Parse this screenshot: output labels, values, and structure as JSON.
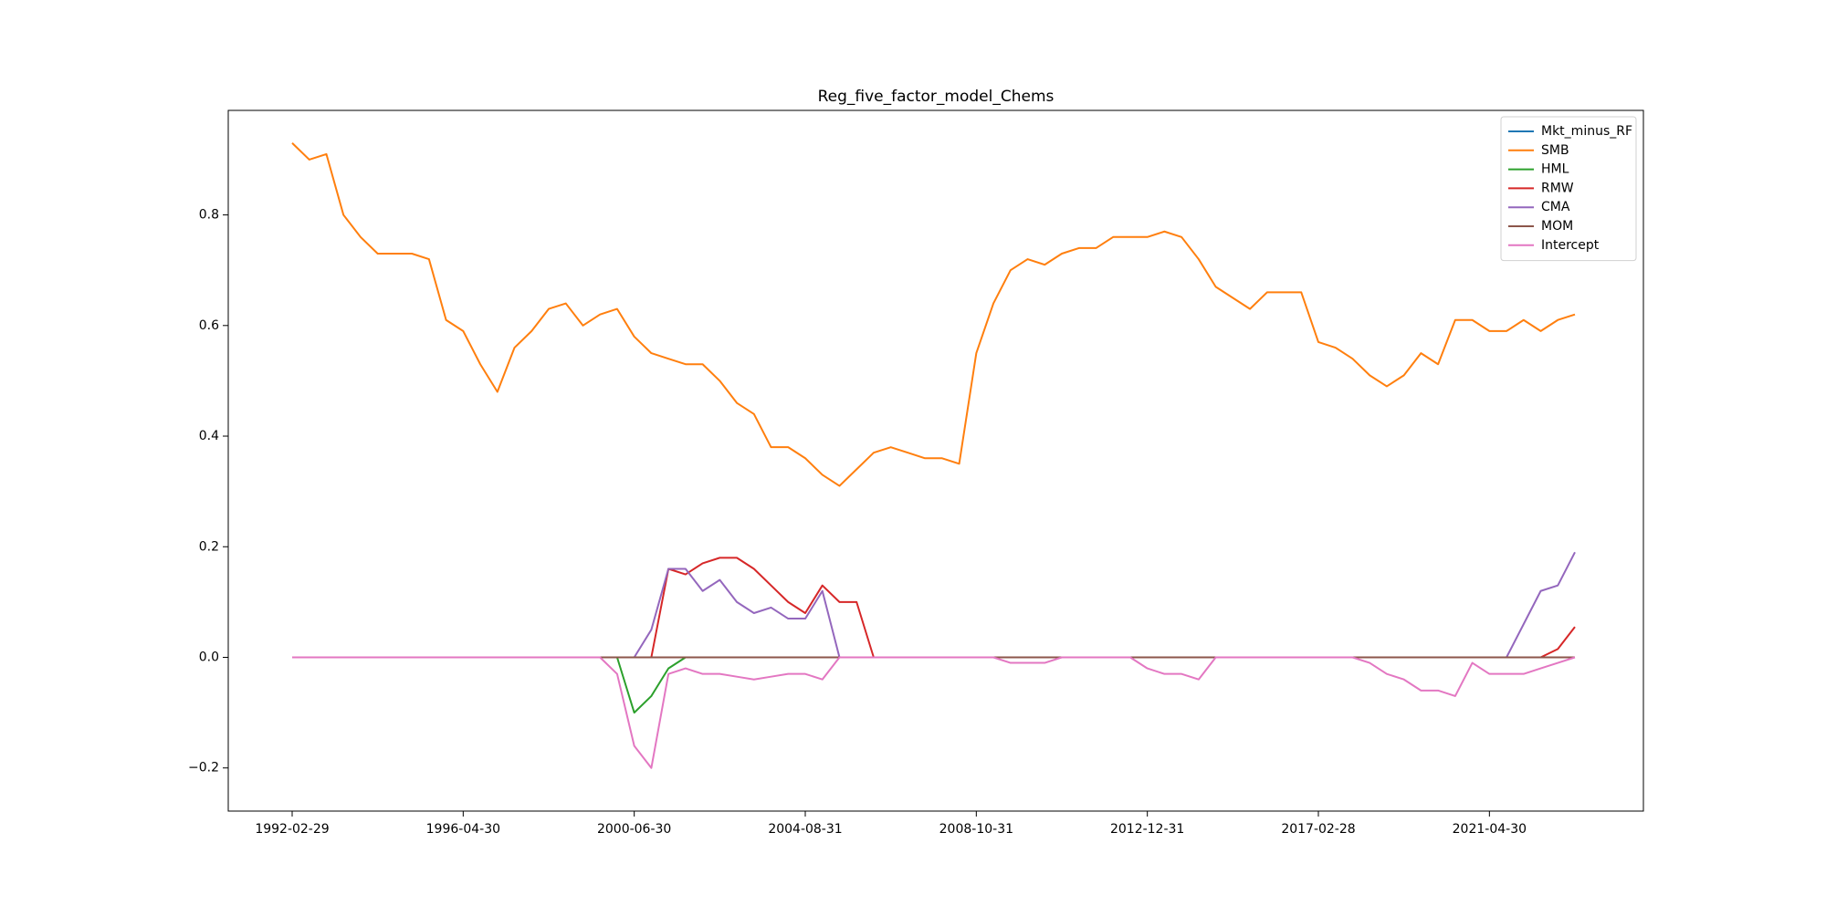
{
  "chart_data": {
    "type": "line",
    "title": "Reg_five_factor_model_Chems",
    "x": [
      "1992-02-29",
      "1992-07-31",
      "1992-12-31",
      "1993-05-31",
      "1993-10-31",
      "1994-03-31",
      "1994-08-31",
      "1995-01-31",
      "1995-06-30",
      "1995-11-30",
      "1996-04-30",
      "1996-09-30",
      "1997-02-28",
      "1997-07-31",
      "1997-12-31",
      "1998-05-31",
      "1998-10-31",
      "1999-03-31",
      "1999-08-31",
      "2000-01-31",
      "2000-06-30",
      "2000-11-30",
      "2001-04-30",
      "2001-09-30",
      "2002-02-28",
      "2002-07-31",
      "2002-12-31",
      "2003-05-31",
      "2003-10-31",
      "2004-03-31",
      "2004-08-31",
      "2005-01-31",
      "2005-06-30",
      "2005-11-30",
      "2006-04-30",
      "2006-09-30",
      "2007-02-28",
      "2007-07-31",
      "2007-12-31",
      "2008-05-31",
      "2008-10-31",
      "2009-03-31",
      "2009-08-31",
      "2010-01-31",
      "2010-06-30",
      "2010-11-30",
      "2011-04-30",
      "2011-09-30",
      "2012-02-29",
      "2012-07-31",
      "2012-12-31",
      "2013-05-31",
      "2013-10-31",
      "2014-03-31",
      "2014-08-31",
      "2015-01-31",
      "2015-06-30",
      "2015-11-30",
      "2016-04-30",
      "2016-09-30",
      "2017-02-28",
      "2017-07-31",
      "2017-12-31",
      "2018-05-31",
      "2018-10-31",
      "2019-03-31",
      "2019-08-31",
      "2020-01-31",
      "2020-06-30",
      "2020-11-30",
      "2021-04-30",
      "2021-09-30",
      "2022-02-28",
      "2022-07-31",
      "2022-12-31",
      "2023-05-31"
    ],
    "series": [
      {
        "name": "Mkt_minus_RF",
        "color": "#1f77b4",
        "values": [
          0,
          0,
          0,
          0,
          0,
          0,
          0,
          0,
          0,
          0,
          0,
          0,
          0,
          0,
          0,
          0,
          0,
          0,
          0,
          0,
          0,
          0,
          0,
          0,
          0,
          0,
          0,
          0,
          0,
          0,
          0,
          0,
          0,
          0,
          0,
          0,
          0,
          0,
          0,
          0,
          0,
          0,
          0,
          0,
          0,
          0,
          0,
          0,
          0,
          0,
          0,
          0,
          0,
          0,
          0,
          0,
          0,
          0,
          0,
          0,
          0,
          0,
          0,
          0,
          0,
          0,
          0,
          0,
          0,
          0,
          0,
          0,
          0,
          0,
          0,
          0
        ]
      },
      {
        "name": "SMB",
        "color": "#ff7f0e",
        "values": [
          0.93,
          0.9,
          0.91,
          0.8,
          0.76,
          0.73,
          0.73,
          0.73,
          0.72,
          0.61,
          0.59,
          0.53,
          0.48,
          0.56,
          0.59,
          0.63,
          0.64,
          0.6,
          0.62,
          0.63,
          0.58,
          0.55,
          0.54,
          0.53,
          0.53,
          0.5,
          0.46,
          0.44,
          0.38,
          0.38,
          0.36,
          0.33,
          0.31,
          0.34,
          0.37,
          0.38,
          0.37,
          0.36,
          0.36,
          0.35,
          0.55,
          0.64,
          0.7,
          0.72,
          0.71,
          0.73,
          0.74,
          0.74,
          0.76,
          0.76,
          0.76,
          0.77,
          0.76,
          0.72,
          0.67,
          0.65,
          0.63,
          0.66,
          0.66,
          0.66,
          0.57,
          0.56,
          0.54,
          0.51,
          0.49,
          0.51,
          0.55,
          0.53,
          0.61,
          0.61,
          0.59,
          0.59,
          0.61,
          0.59,
          0.61,
          0.62
        ]
      },
      {
        "name": "HML",
        "color": "#2ca02c",
        "values": [
          0,
          0,
          0,
          0,
          0,
          0,
          0,
          0,
          0,
          0,
          0,
          0,
          0,
          0,
          0,
          0,
          0,
          0,
          0,
          0,
          -0.1,
          -0.07,
          -0.02,
          0,
          0,
          0,
          0,
          0,
          0,
          0,
          0,
          0,
          0,
          0,
          0,
          0,
          0,
          0,
          0,
          0,
          0,
          0,
          0,
          0,
          0,
          0,
          0,
          0,
          0,
          0,
          0,
          0,
          0,
          0,
          0,
          0,
          0,
          0,
          0,
          0,
          0,
          0,
          0,
          0,
          0,
          0,
          0,
          0,
          0,
          0,
          0,
          0,
          0,
          0,
          0,
          0
        ]
      },
      {
        "name": "RMW",
        "color": "#d62728",
        "values": [
          0,
          0,
          0,
          0,
          0,
          0,
          0,
          0,
          0,
          0,
          0,
          0,
          0,
          0,
          0,
          0,
          0,
          0,
          0,
          0,
          0,
          0,
          0.16,
          0.15,
          0.17,
          0.18,
          0.18,
          0.16,
          0.13,
          0.1,
          0.08,
          0.13,
          0.1,
          0.1,
          0,
          0,
          0,
          0,
          0,
          0,
          0,
          0,
          0,
          0,
          0,
          0,
          0,
          0,
          0,
          0,
          0,
          0,
          0,
          0,
          0,
          0,
          0,
          0,
          0,
          0,
          0,
          0,
          0,
          0,
          0,
          0,
          0,
          0,
          0,
          0,
          0,
          0,
          0,
          0,
          0.015,
          0.055
        ]
      },
      {
        "name": "CMA",
        "color": "#9467bd",
        "values": [
          0,
          0,
          0,
          0,
          0,
          0,
          0,
          0,
          0,
          0,
          0,
          0,
          0,
          0,
          0,
          0,
          0,
          0,
          0,
          0,
          0,
          0.05,
          0.16,
          0.16,
          0.12,
          0.14,
          0.1,
          0.08,
          0.09,
          0.07,
          0.07,
          0.12,
          0,
          0,
          0,
          0,
          0,
          0,
          0,
          0,
          0,
          0,
          0,
          0,
          0,
          0,
          0,
          0,
          0,
          0,
          0,
          0,
          0,
          0,
          0,
          0,
          0,
          0,
          0,
          0,
          0,
          0,
          0,
          0,
          0,
          0,
          0,
          0,
          0,
          0,
          0,
          0,
          0.06,
          0.12,
          0.13,
          0.19
        ]
      },
      {
        "name": "MOM",
        "color": "#8c564b",
        "values": [
          0,
          0,
          0,
          0,
          0,
          0,
          0,
          0,
          0,
          0,
          0,
          0,
          0,
          0,
          0,
          0,
          0,
          0,
          0,
          0,
          0,
          0,
          0,
          0,
          0,
          0,
          0,
          0,
          0,
          0,
          0,
          0,
          0,
          0,
          0,
          0,
          0,
          0,
          0,
          0,
          0,
          0,
          0,
          0,
          0,
          0,
          0,
          0,
          0,
          0,
          0,
          0,
          0,
          0,
          0,
          0,
          0,
          0,
          0,
          0,
          0,
          0,
          0,
          0,
          0,
          0,
          0,
          0,
          0,
          0,
          0,
          0,
          0,
          0,
          0,
          0
        ]
      },
      {
        "name": "Intercept",
        "color": "#e377c2",
        "values": [
          0,
          0,
          0,
          0,
          0,
          0,
          0,
          0,
          0,
          0,
          0,
          0,
          0,
          0,
          0,
          0,
          0,
          0,
          0,
          -0.03,
          -0.16,
          -0.2,
          -0.03,
          -0.02,
          -0.03,
          -0.03,
          -0.035,
          -0.04,
          -0.035,
          -0.03,
          -0.03,
          -0.04,
          0,
          0,
          0,
          0,
          0,
          0,
          0,
          0,
          0,
          0,
          -0.01,
          -0.01,
          -0.01,
          0,
          0,
          0,
          0,
          0,
          -0.02,
          -0.03,
          -0.03,
          -0.04,
          0,
          0,
          0,
          0,
          0,
          0,
          0,
          0,
          0,
          -0.01,
          -0.03,
          -0.04,
          -0.06,
          -0.06,
          -0.07,
          -0.01,
          -0.03,
          -0.03,
          -0.03,
          -0.02,
          -0.01,
          0
        ]
      }
    ],
    "ylim": [
      -0.278,
      0.989
    ],
    "yticks": [
      {
        "value": -0.2,
        "label": "−0.2"
      },
      {
        "value": 0,
        "label": "0.0"
      },
      0.2,
      0.4,
      0.6,
      0.8
    ],
    "legend": "upper right"
  }
}
